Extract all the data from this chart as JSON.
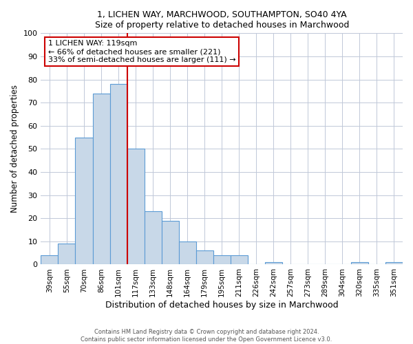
{
  "title1": "1, LICHEN WAY, MARCHWOOD, SOUTHAMPTON, SO40 4YA",
  "title2": "Size of property relative to detached houses in Marchwood",
  "xlabel": "Distribution of detached houses by size in Marchwood",
  "ylabel": "Number of detached properties",
  "categories": [
    "39sqm",
    "55sqm",
    "70sqm",
    "86sqm",
    "101sqm",
    "117sqm",
    "133sqm",
    "148sqm",
    "164sqm",
    "179sqm",
    "195sqm",
    "211sqm",
    "226sqm",
    "242sqm",
    "257sqm",
    "273sqm",
    "289sqm",
    "304sqm",
    "320sqm",
    "335sqm",
    "351sqm"
  ],
  "values": [
    4,
    9,
    55,
    74,
    78,
    50,
    23,
    19,
    10,
    6,
    4,
    4,
    0,
    1,
    0,
    0,
    0,
    0,
    1,
    0,
    1
  ],
  "bar_color": "#c8d8e8",
  "bar_edge_color": "#5b9bd5",
  "vline_x_index": 5,
  "vline_color": "#cc0000",
  "annotation_line1": "1 LICHEN WAY: 119sqm",
  "annotation_line2": "← 66% of detached houses are smaller (221)",
  "annotation_line3": "33% of semi-detached houses are larger (111) →",
  "annotation_box_color": "#cc0000",
  "ylim": [
    0,
    100
  ],
  "yticks": [
    0,
    10,
    20,
    30,
    40,
    50,
    60,
    70,
    80,
    90,
    100
  ],
  "footer1": "Contains HM Land Registry data © Crown copyright and database right 2024.",
  "footer2": "Contains public sector information licensed under the Open Government Licence v3.0.",
  "background_color": "#ffffff",
  "grid_color": "#c0c8d8"
}
